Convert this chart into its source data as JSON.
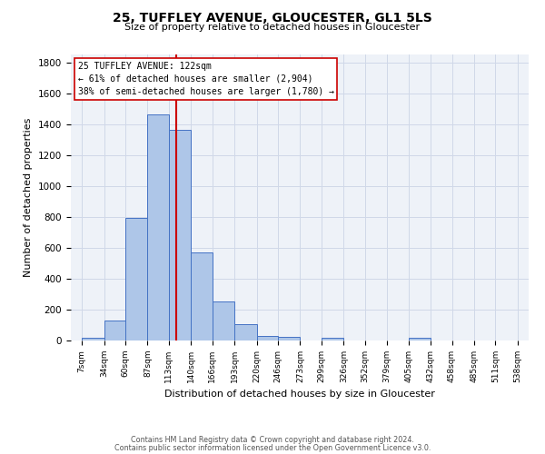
{
  "title_line1": "25, TUFFLEY AVENUE, GLOUCESTER, GL1 5LS",
  "title_line2": "Size of property relative to detached houses in Gloucester",
  "xlabel": "Distribution of detached houses by size in Gloucester",
  "ylabel": "Number of detached properties",
  "bar_edges": [
    7,
    34,
    60,
    87,
    113,
    140,
    166,
    193,
    220,
    246,
    273,
    299,
    326,
    352,
    379,
    405,
    432,
    458,
    485,
    511,
    538
  ],
  "bar_heights": [
    15,
    130,
    790,
    1460,
    1360,
    570,
    250,
    105,
    30,
    25,
    0,
    20,
    0,
    0,
    0,
    15,
    0,
    0,
    0,
    0
  ],
  "bar_color": "#aec6e8",
  "bar_edge_color": "#4472c4",
  "property_line_x": 122,
  "property_line_color": "#cc0000",
  "annotation_title": "25 TUFFLEY AVENUE: 122sqm",
  "annotation_line1": "← 61% of detached houses are smaller (2,904)",
  "annotation_line2": "38% of semi-detached houses are larger (1,780) →",
  "annotation_box_color": "#ffffff",
  "annotation_box_edgecolor": "#cc0000",
  "ylim": [
    0,
    1850
  ],
  "yticks": [
    0,
    200,
    400,
    600,
    800,
    1000,
    1200,
    1400,
    1600,
    1800
  ],
  "tick_labels": [
    "7sqm",
    "34sqm",
    "60sqm",
    "87sqm",
    "113sqm",
    "140sqm",
    "166sqm",
    "193sqm",
    "220sqm",
    "246sqm",
    "273sqm",
    "299sqm",
    "326sqm",
    "352sqm",
    "379sqm",
    "405sqm",
    "432sqm",
    "458sqm",
    "485sqm",
    "511sqm",
    "538sqm"
  ],
  "footnote1": "Contains HM Land Registry data © Crown copyright and database right 2024.",
  "footnote2": "Contains public sector information licensed under the Open Government Licence v3.0.",
  "grid_color": "#d0d8e8",
  "background_color": "#eef2f8",
  "fig_width": 6.0,
  "fig_height": 5.0,
  "dpi": 100
}
